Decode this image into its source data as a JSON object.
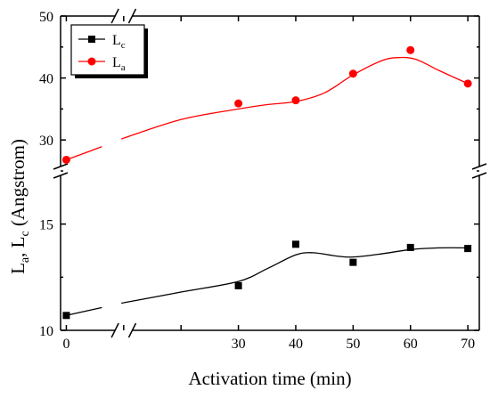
{
  "chart_data": {
    "type": "scatter",
    "xlabel": "Activation time (min)",
    "ylabel": "La, Lc (Angstrom)",
    "ylabel_parts": {
      "pre": "L",
      "sub1": "a",
      "mid": ", L",
      "sub2": "c",
      "post": " (Angstrom)"
    },
    "x_ticks": [
      0,
      10,
      20,
      30,
      40,
      50,
      60,
      70
    ],
    "x_tick_labels": [
      "0",
      "30",
      "40",
      "50",
      "60",
      "70"
    ],
    "x_labeled_ticks": [
      0,
      30,
      40,
      50,
      60,
      70
    ],
    "xlim": [
      -1,
      72
    ],
    "x_break": true,
    "y_break": true,
    "panels": [
      {
        "name": "upper",
        "ylim": [
          25,
          50
        ],
        "y_ticks": [
          30,
          35,
          40,
          45,
          50
        ],
        "y_tick_labels": [
          "30",
          "40",
          "50"
        ],
        "y_labeled_ticks": [
          30,
          40,
          50
        ]
      },
      {
        "name": "lower",
        "ylim": [
          10,
          17.5
        ],
        "y_ticks": [
          10,
          12.5,
          15,
          17.5
        ],
        "y_tick_labels": [
          "10",
          "15"
        ],
        "y_labeled_ticks": [
          10,
          15
        ]
      }
    ],
    "series": [
      {
        "name": "Lc",
        "legend_main": "L",
        "legend_sub": "c",
        "panel": "lower",
        "marker": "square",
        "color": "#000000",
        "x": [
          0,
          30,
          40,
          50,
          60,
          70
        ],
        "y": [
          10.7,
          12.1,
          14.05,
          13.2,
          13.9,
          13.85
        ],
        "curve": [
          [
            0,
            10.7
          ],
          [
            5,
            11.0
          ],
          [
            10,
            11.3
          ],
          [
            20,
            11.8
          ],
          [
            30,
            12.3
          ],
          [
            35,
            12.9
          ],
          [
            40,
            13.55
          ],
          [
            43,
            13.65
          ],
          [
            47,
            13.5
          ],
          [
            50,
            13.45
          ],
          [
            55,
            13.6
          ],
          [
            60,
            13.8
          ],
          [
            65,
            13.88
          ],
          [
            70,
            13.88
          ]
        ]
      },
      {
        "name": "La",
        "legend_main": "L",
        "legend_sub": "a",
        "panel": "upper",
        "marker": "circle",
        "color": "#ff0000",
        "x": [
          0,
          30,
          40,
          50,
          60,
          70
        ],
        "y": [
          26.8,
          35.9,
          36.4,
          40.7,
          44.5,
          39.1
        ],
        "curve": [
          [
            0,
            26.8
          ],
          [
            5,
            28.5
          ],
          [
            10,
            30.3
          ],
          [
            20,
            33.3
          ],
          [
            30,
            35.0
          ],
          [
            35,
            35.7
          ],
          [
            40,
            36.2
          ],
          [
            45,
            37.6
          ],
          [
            50,
            40.5
          ],
          [
            55,
            42.8
          ],
          [
            58,
            43.3
          ],
          [
            61,
            43.0
          ],
          [
            65,
            41.2
          ],
          [
            70,
            39.1
          ]
        ]
      }
    ],
    "legend_position": "top-left"
  }
}
